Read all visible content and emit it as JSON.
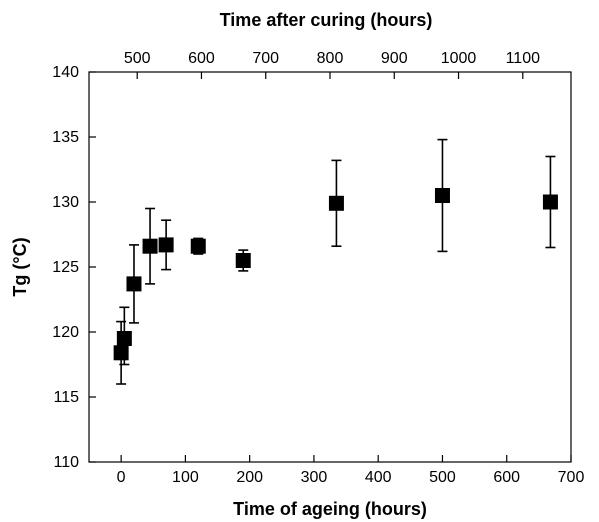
{
  "chart_data": {
    "type": "scatter",
    "xlabel": "Time of ageing (hours)",
    "x2label": "Time after curing (hours)",
    "ylabel": "Tg (°C)",
    "xlim": [
      -50,
      700
    ],
    "ylim": [
      110,
      140
    ],
    "x_ticks": [
      0,
      100,
      200,
      300,
      400,
      500,
      600,
      700
    ],
    "x_tick_labels": [
      "0",
      "100",
      "200",
      "300",
      "400",
      "500",
      "600",
      "700"
    ],
    "x2_tick_labels": [
      "500",
      "600",
      "700",
      "800",
      "900",
      "1000",
      "1100"
    ],
    "x2_ticks_primary_units": [
      25,
      125,
      225,
      325,
      425,
      525,
      625
    ],
    "y_ticks": [
      110,
      115,
      120,
      125,
      130,
      135,
      140
    ],
    "y_tick_labels": [
      "110",
      "115",
      "120",
      "125",
      "130",
      "135",
      "140"
    ],
    "grid": false,
    "error_bars": true,
    "marker": "square",
    "color": "#000000",
    "series": [
      {
        "points": [
          {
            "x": 0,
            "y": 118.4,
            "err_low": 2.4,
            "err_high": 2.4
          },
          {
            "x": 5,
            "y": 119.5,
            "err_low": 2.0,
            "err_high": 2.4
          },
          {
            "x": 20,
            "y": 123.7,
            "err_low": 3.0,
            "err_high": 3.0
          },
          {
            "x": 45,
            "y": 126.6,
            "err_low": 2.9,
            "err_high": 2.9
          },
          {
            "x": 70,
            "y": 126.7,
            "err_low": 1.9,
            "err_high": 1.9
          },
          {
            "x": 120,
            "y": 126.6,
            "err_low": 0.6,
            "err_high": 0.6
          },
          {
            "x": 190,
            "y": 125.5,
            "err_low": 0.8,
            "err_high": 0.8
          },
          {
            "x": 335,
            "y": 129.9,
            "err_low": 3.3,
            "err_high": 3.3
          },
          {
            "x": 500,
            "y": 130.5,
            "err_low": 4.3,
            "err_high": 4.3
          },
          {
            "x": 668,
            "y": 130.0,
            "err_low": 3.5,
            "err_high": 3.5
          }
        ]
      }
    ]
  }
}
